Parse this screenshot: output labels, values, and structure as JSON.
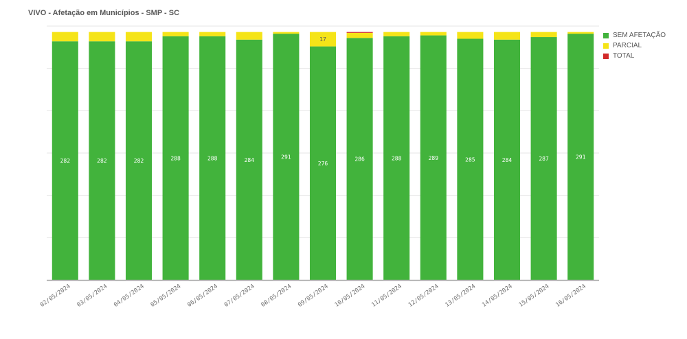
{
  "chart_data": {
    "type": "bar",
    "stacked": true,
    "title": "VIVO - Afetação em Municípios - SMP - SC",
    "xlabel": "",
    "ylabel": "",
    "ylim": [
      0,
      300
    ],
    "grid": true,
    "legend_position": "right",
    "categories": [
      "02/05/2024",
      "03/05/2024",
      "04/05/2024",
      "05/05/2024",
      "06/05/2024",
      "07/05/2024",
      "08/05/2024",
      "09/05/2024",
      "10/05/2024",
      "11/05/2024",
      "12/05/2024",
      "13/05/2024",
      "14/05/2024",
      "15/05/2024",
      "16/05/2024"
    ],
    "series": [
      {
        "name": "SEM AFETAÇÃO",
        "color": "#42b33c",
        "values": [
          282,
          282,
          282,
          288,
          288,
          284,
          291,
          276,
          286,
          288,
          289,
          285,
          284,
          287,
          291
        ]
      },
      {
        "name": "PARCIAL",
        "color": "#f5e418",
        "values": [
          11,
          11,
          11,
          5,
          5,
          9,
          2,
          17,
          6,
          5,
          4,
          8,
          9,
          6,
          2
        ]
      },
      {
        "name": "TOTAL",
        "color": "#d22a2a",
        "values": [
          0,
          0,
          0,
          0,
          0,
          0,
          0,
          0,
          1,
          0,
          0,
          0,
          0,
          0,
          0
        ]
      }
    ],
    "data_labels": {
      "SEM AFETAÇÃO": "all",
      "PARCIAL": [
        "09/05/2024"
      ]
    }
  }
}
